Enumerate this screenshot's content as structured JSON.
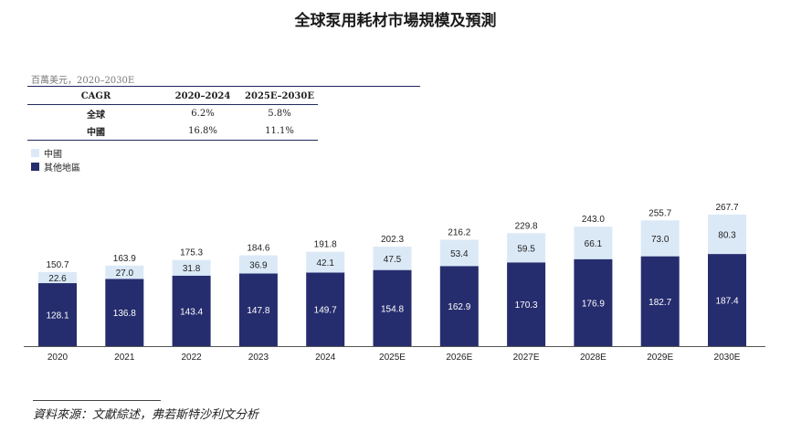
{
  "title": "全球泵用耗材市場規模及預測",
  "unit_note": "百萬美元，2020–2030E",
  "cagr_table": {
    "headers": [
      "CAGR",
      "2020–2024",
      "2025E–2030E"
    ],
    "rows": [
      {
        "label": "全球",
        "values": [
          "6.2%",
          "5.8%"
        ]
      },
      {
        "label": "中國",
        "values": [
          "16.8%",
          "11.1%"
        ]
      }
    ]
  },
  "colors": {
    "china": "#dbe9f7",
    "other": "#262d6e",
    "axis": "#555555"
  },
  "chart_data": {
    "type": "bar",
    "stacked": true,
    "categories": [
      "2020",
      "2021",
      "2022",
      "2023",
      "2024",
      "2025E",
      "2026E",
      "2027E",
      "2028E",
      "2029E",
      "2030E"
    ],
    "series": [
      {
        "name": "其他地區",
        "values": [
          128.1,
          136.8,
          143.4,
          147.8,
          149.7,
          154.8,
          162.9,
          170.3,
          176.9,
          182.7,
          187.4
        ]
      },
      {
        "name": "中國",
        "values": [
          22.6,
          27.0,
          31.8,
          36.9,
          42.1,
          47.5,
          53.4,
          59.5,
          66.1,
          73.0,
          80.3
        ]
      }
    ],
    "totals": [
      "150.7",
      "163.9",
      "175.3",
      "184.6",
      "191.8",
      "202.3",
      "216.2",
      "229.8",
      "243.0",
      "255.7",
      "267.7"
    ],
    "segment_labels": {
      "其他地區": [
        "128.1",
        "136.8",
        "143.4",
        "147.8",
        "149.7",
        "154.8",
        "162.9",
        "170.3",
        "176.9",
        "182.7",
        "187.4"
      ],
      "中國": [
        "22.6",
        "27.0",
        "31.8",
        "36.9",
        "42.1",
        "47.5",
        "53.4",
        "59.5",
        "66.1",
        "73.0",
        "80.3"
      ]
    },
    "legend": [
      {
        "label": "中國",
        "color": "#dbe9f7"
      },
      {
        "label": "其他地區",
        "color": "#262d6e"
      }
    ],
    "legend_position": "left",
    "grid": false
  },
  "source_note": "資料來源：文獻綜述，弗若斯特沙利文分析"
}
